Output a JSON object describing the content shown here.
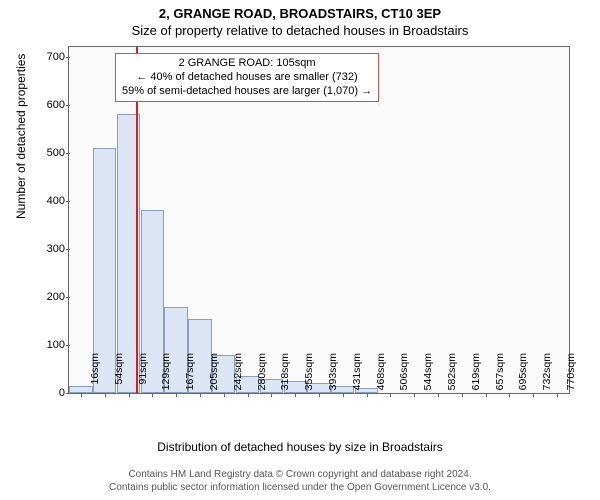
{
  "title_line1": "2, GRANGE ROAD, BROADSTAIRS, CT10 3EP",
  "title_line2": "Size of property relative to detached houses in Broadstairs",
  "ylabel": "Number of detached properties",
  "xlabel": "Distribution of detached houses by size in Broadstairs",
  "footer_line1": "Contains HM Land Registry data © Crown copyright and database right 2024.",
  "footer_line2": "Contains public sector information licensed under the Open Government Licence v3.0.",
  "chart": {
    "ylim": [
      0,
      720
    ],
    "yticks": [
      0,
      100,
      200,
      300,
      400,
      500,
      600,
      700
    ],
    "xticks": [
      "16sqm",
      "54sqm",
      "91sqm",
      "129sqm",
      "167sqm",
      "205sqm",
      "242sqm",
      "280sqm",
      "318sqm",
      "355sqm",
      "393sqm",
      "431sqm",
      "468sqm",
      "506sqm",
      "544sqm",
      "582sqm",
      "619sqm",
      "657sqm",
      "695sqm",
      "732sqm",
      "770sqm"
    ],
    "bar_count": 21,
    "bar_values": [
      15,
      510,
      580,
      380,
      180,
      155,
      80,
      35,
      30,
      25,
      20,
      15,
      10,
      0,
      0,
      0,
      0,
      0,
      0,
      0,
      0
    ],
    "bar_fill": "#dbe5f3",
    "bar_border": "#8aa0c0",
    "marker_index": 2.35,
    "marker_color": "#d02020",
    "background": "#fafafa"
  },
  "annotation": {
    "line1": "2 GRANGE ROAD: 105sqm",
    "line2": "← 40% of detached houses are smaller (732)",
    "line3": "59% of semi-detached houses are larger (1,070) →",
    "border_color": "#d05050"
  }
}
